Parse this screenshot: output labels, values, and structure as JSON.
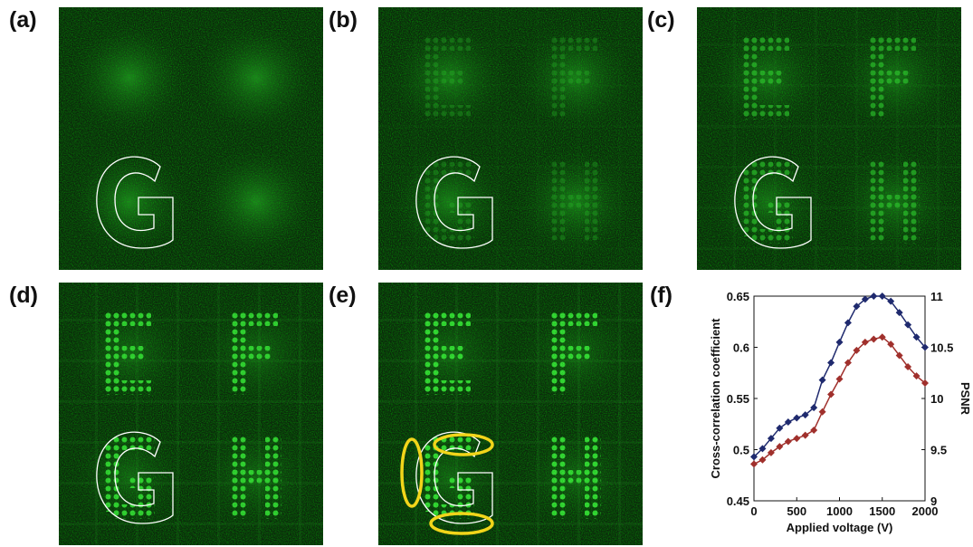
{
  "panels": [
    {
      "label": "(a)"
    },
    {
      "label": "(b)"
    },
    {
      "label": "(c)"
    },
    {
      "label": "(d)"
    },
    {
      "label": "(e)"
    },
    {
      "label": "(f)"
    }
  ],
  "chart_data": {
    "type": "line",
    "xlabel": "Applied voltage (V)",
    "ylabel": "Cross-correlation coefficient",
    "y2label": "PSNR",
    "x": [
      0,
      100,
      200,
      300,
      400,
      500,
      600,
      700,
      800,
      900,
      1000,
      1100,
      1200,
      1300,
      1400,
      1500,
      1600,
      1700,
      1800,
      1900,
      2000
    ],
    "series": [
      {
        "color": "#1f2a6e",
        "values": [
          0.493,
          0.501,
          0.511,
          0.521,
          0.527,
          0.531,
          0.534,
          0.541,
          0.568,
          0.585,
          0.605,
          0.624,
          0.64,
          0.647,
          0.65,
          0.65,
          0.645,
          0.634,
          0.622,
          0.61,
          0.6
        ]
      },
      {
        "color": "#a0302c",
        "axis": "y2",
        "values": [
          9.36,
          9.4,
          9.47,
          9.53,
          9.58,
          9.61,
          9.64,
          9.69,
          9.87,
          10.04,
          10.19,
          10.35,
          10.47,
          10.55,
          10.58,
          10.6,
          10.53,
          10.42,
          10.31,
          10.22,
          10.15
        ]
      }
    ],
    "xlim": [
      0,
      2000
    ],
    "xticks": [
      0,
      500,
      1000,
      1500,
      2000
    ],
    "ylim": [
      0.45,
      0.65
    ],
    "yticks": [
      0.45,
      0.5,
      0.55,
      0.6,
      0.65
    ],
    "y2lim": [
      9,
      11
    ],
    "y2ticks": [
      9,
      9.5,
      10,
      10.5,
      11
    ]
  }
}
